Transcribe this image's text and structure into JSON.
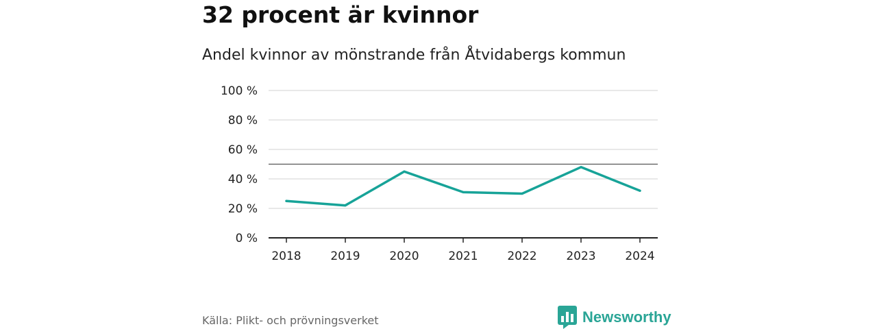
{
  "header": {
    "title": "32 procent är kvinnor",
    "subtitle": "Andel kvinnor av mönstrande från Åtvidabergs kommun"
  },
  "footer": {
    "source": "Källa: Plikt- och prövningsverket",
    "brand": "Newsworthy"
  },
  "colors": {
    "line": "#17a398",
    "grid": "#d9d9d9",
    "reference": "#555555",
    "axis": "#222222",
    "brand": "#2aa596"
  },
  "chart_data": {
    "type": "line",
    "title": "32 procent är kvinnor",
    "subtitle": "Andel kvinnor av mönstrande från Åtvidabergs kommun",
    "xlabel": "",
    "ylabel": "",
    "categories": [
      "2018",
      "2019",
      "2020",
      "2021",
      "2022",
      "2023",
      "2024"
    ],
    "series": [
      {
        "name": "Andel kvinnor",
        "values": [
          25,
          22,
          45,
          31,
          30,
          48,
          32
        ]
      }
    ],
    "ylim": [
      0,
      100
    ],
    "yticks": [
      0,
      20,
      40,
      60,
      80,
      100
    ],
    "ytick_labels": [
      "0 %",
      "20 %",
      "40 %",
      "60 %",
      "80 %",
      "100 %"
    ],
    "reference_line": 50,
    "grid": true,
    "legend": "none"
  }
}
